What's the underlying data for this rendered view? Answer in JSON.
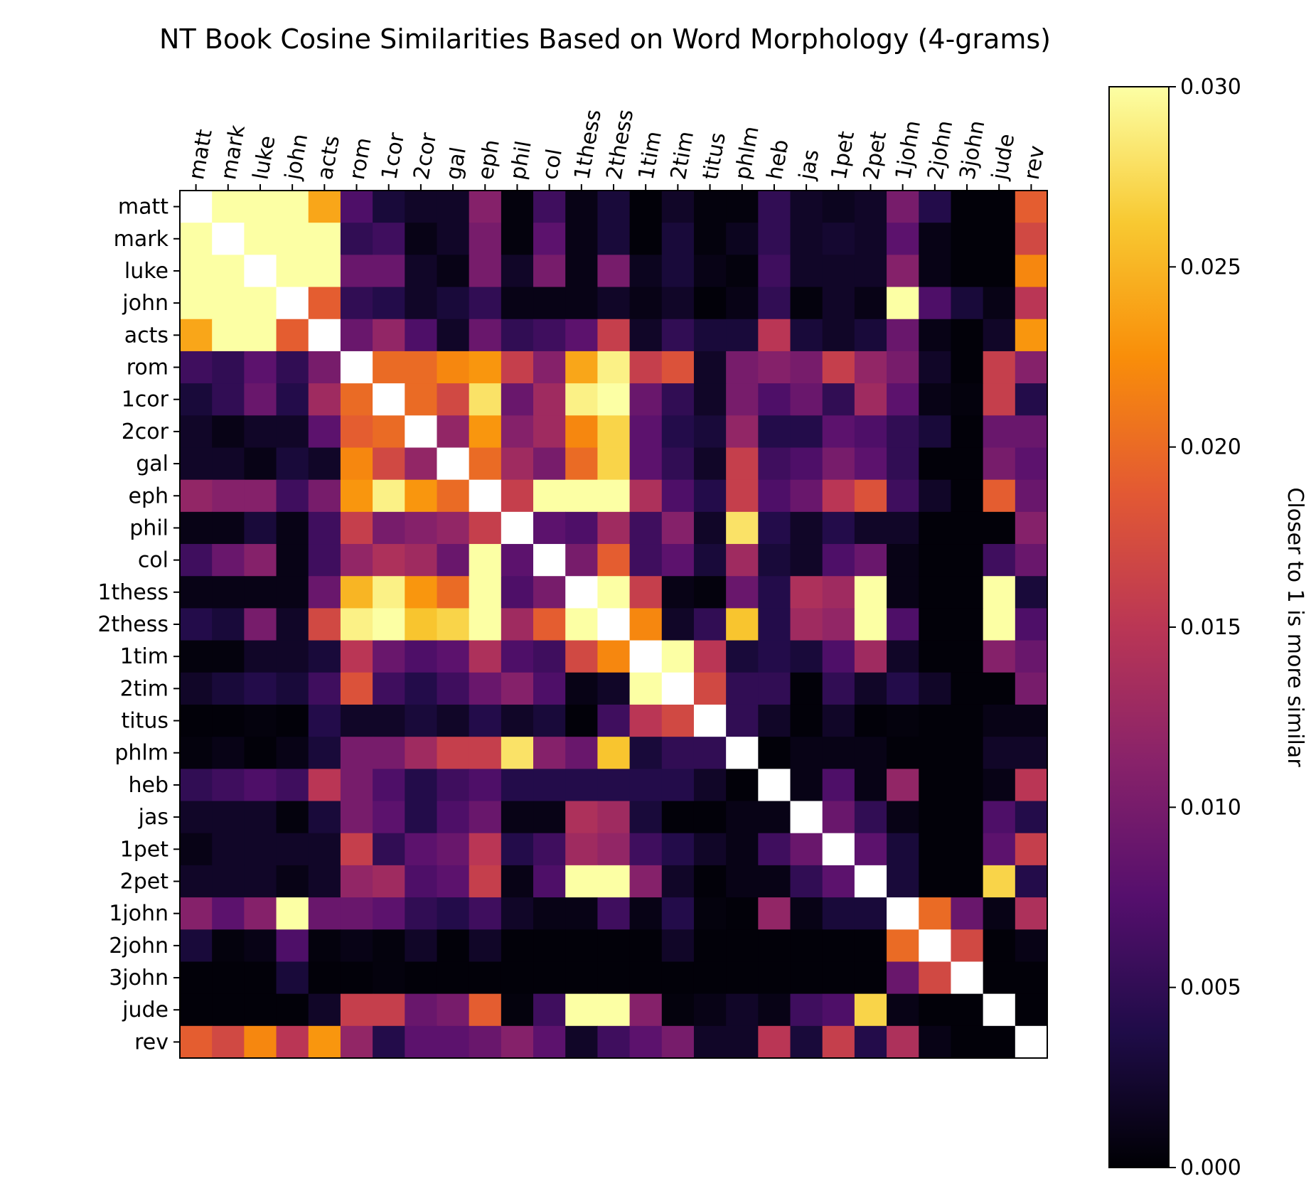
{
  "chart_data": {
    "type": "heatmap",
    "title": "NT Book Cosine Similarities Based on Word Morphology (4-grams)",
    "labels": [
      "matt",
      "mark",
      "luke",
      "john",
      "acts",
      "rom",
      "1cor",
      "2cor",
      "gal",
      "eph",
      "phil",
      "col",
      "1thess",
      "2thess",
      "1tim",
      "2tim",
      "titus",
      "phlm",
      "heb",
      "jas",
      "1pet",
      "2pet",
      "1john",
      "2john",
      "3john",
      "jude",
      "rev"
    ],
    "colormap": "inferno",
    "vmin": 0.0,
    "vmax": 0.03,
    "colorbar": {
      "label": "Closer to 1 is more similar",
      "ticks": [
        "0.000",
        "0.005",
        "0.010",
        "0.015",
        "0.020",
        "0.025",
        "0.030"
      ],
      "position": "right"
    },
    "diagonal_value": 1.0,
    "values": [
      [
        1.0,
        0.03,
        0.03,
        0.03,
        0.024,
        0.007,
        0.003,
        0.002,
        0.002,
        0.011,
        0.0005,
        0.006,
        0.001,
        0.003,
        0.0003,
        0.002,
        0.0005,
        0.0005,
        0.005,
        0.002,
        0.0015,
        0.002,
        0.01,
        0.004,
        0.0003,
        0.0003,
        0.019
      ],
      [
        0.03,
        1.0,
        0.03,
        0.03,
        0.03,
        0.005,
        0.006,
        0.001,
        0.002,
        0.01,
        0.0005,
        0.008,
        0.001,
        0.003,
        0.0003,
        0.003,
        0.0005,
        0.0015,
        0.005,
        0.002,
        0.0025,
        0.002,
        0.008,
        0.001,
        0.0003,
        0.0003,
        0.017
      ],
      [
        0.03,
        0.03,
        1.0,
        0.03,
        0.03,
        0.009,
        0.009,
        0.002,
        0.001,
        0.01,
        0.002,
        0.01,
        0.001,
        0.01,
        0.0015,
        0.003,
        0.001,
        0.0005,
        0.006,
        0.002,
        0.002,
        0.002,
        0.011,
        0.001,
        0.0003,
        0.0003,
        0.022
      ],
      [
        0.03,
        0.03,
        0.03,
        1.0,
        0.019,
        0.005,
        0.004,
        0.002,
        0.003,
        0.005,
        0.001,
        0.001,
        0.001,
        0.002,
        0.001,
        0.002,
        0.0003,
        0.001,
        0.005,
        0.0005,
        0.002,
        0.001,
        0.03,
        0.007,
        0.003,
        0.001,
        0.015
      ],
      [
        0.024,
        0.03,
        0.03,
        0.019,
        1.0,
        0.009,
        0.012,
        0.007,
        0.002,
        0.009,
        0.005,
        0.006,
        0.008,
        0.016,
        0.002,
        0.005,
        0.003,
        0.003,
        0.015,
        0.003,
        0.002,
        0.003,
        0.009,
        0.001,
        0.0003,
        0.002,
        0.023
      ],
      [
        0.006,
        0.005,
        0.008,
        0.005,
        0.01,
        1.0,
        0.02,
        0.02,
        0.022,
        0.023,
        0.016,
        0.011,
        0.024,
        0.029,
        0.016,
        0.018,
        0.002,
        0.01,
        0.011,
        0.01,
        0.016,
        0.012,
        0.01,
        0.002,
        0.0003,
        0.016,
        0.011
      ],
      [
        0.003,
        0.005,
        0.009,
        0.004,
        0.013,
        0.02,
        1.0,
        0.02,
        0.017,
        0.028,
        0.009,
        0.013,
        0.029,
        0.03,
        0.009,
        0.005,
        0.002,
        0.01,
        0.007,
        0.009,
        0.005,
        0.013,
        0.008,
        0.001,
        0.0005,
        0.016,
        0.004
      ],
      [
        0.002,
        0.001,
        0.002,
        0.002,
        0.008,
        0.019,
        0.02,
        1.0,
        0.012,
        0.023,
        0.011,
        0.013,
        0.022,
        0.027,
        0.008,
        0.004,
        0.003,
        0.012,
        0.004,
        0.004,
        0.008,
        0.007,
        0.005,
        0.003,
        0.0003,
        0.009,
        0.009
      ],
      [
        0.002,
        0.002,
        0.001,
        0.003,
        0.002,
        0.022,
        0.017,
        0.012,
        1.0,
        0.02,
        0.013,
        0.01,
        0.02,
        0.027,
        0.008,
        0.005,
        0.002,
        0.016,
        0.006,
        0.007,
        0.01,
        0.008,
        0.005,
        0.0003,
        0.0003,
        0.01,
        0.008
      ],
      [
        0.012,
        0.011,
        0.011,
        0.006,
        0.01,
        0.023,
        0.029,
        0.023,
        0.02,
        1.0,
        0.016,
        0.03,
        0.03,
        0.03,
        0.014,
        0.007,
        0.004,
        0.016,
        0.007,
        0.009,
        0.015,
        0.018,
        0.006,
        0.002,
        0.0003,
        0.019,
        0.009
      ],
      [
        0.001,
        0.001,
        0.003,
        0.001,
        0.006,
        0.016,
        0.01,
        0.011,
        0.012,
        0.016,
        1.0,
        0.008,
        0.007,
        0.013,
        0.006,
        0.011,
        0.002,
        0.028,
        0.004,
        0.002,
        0.004,
        0.002,
        0.002,
        0.0003,
        0.0003,
        0.0003,
        0.011
      ],
      [
        0.006,
        0.009,
        0.011,
        0.001,
        0.006,
        0.012,
        0.014,
        0.013,
        0.009,
        0.03,
        0.008,
        1.0,
        0.01,
        0.019,
        0.006,
        0.008,
        0.003,
        0.013,
        0.003,
        0.002,
        0.007,
        0.009,
        0.001,
        0.0003,
        0.0003,
        0.006,
        0.009
      ],
      [
        0.001,
        0.001,
        0.001,
        0.001,
        0.009,
        0.025,
        0.029,
        0.023,
        0.02,
        0.03,
        0.007,
        0.01,
        1.0,
        0.03,
        0.016,
        0.001,
        0.0005,
        0.009,
        0.004,
        0.014,
        0.013,
        0.03,
        0.001,
        0.0003,
        0.0003,
        0.03,
        0.003
      ],
      [
        0.004,
        0.003,
        0.01,
        0.002,
        0.017,
        0.029,
        0.03,
        0.026,
        0.027,
        0.03,
        0.013,
        0.019,
        0.03,
        1.0,
        0.022,
        0.002,
        0.005,
        0.026,
        0.004,
        0.013,
        0.012,
        0.03,
        0.007,
        0.0003,
        0.0003,
        0.03,
        0.007
      ],
      [
        0.0005,
        0.0005,
        0.002,
        0.002,
        0.003,
        0.015,
        0.009,
        0.007,
        0.008,
        0.014,
        0.007,
        0.006,
        0.017,
        0.022,
        1.0,
        0.03,
        0.015,
        0.003,
        0.004,
        0.003,
        0.007,
        0.013,
        0.002,
        0.0003,
        0.0003,
        0.011,
        0.009
      ],
      [
        0.002,
        0.003,
        0.004,
        0.003,
        0.006,
        0.018,
        0.006,
        0.004,
        0.006,
        0.009,
        0.011,
        0.007,
        0.001,
        0.002,
        0.03,
        1.0,
        0.017,
        0.005,
        0.005,
        0.0003,
        0.005,
        0.002,
        0.004,
        0.002,
        0.0003,
        0.0003,
        0.01
      ],
      [
        0.0003,
        0.0003,
        0.0005,
        0.0003,
        0.004,
        0.002,
        0.002,
        0.003,
        0.002,
        0.004,
        0.002,
        0.003,
        0.0003,
        0.006,
        0.015,
        0.017,
        1.0,
        0.005,
        0.002,
        0.0003,
        0.002,
        0.0003,
        0.0005,
        0.0003,
        0.0003,
        0.001,
        0.001
      ],
      [
        0.0005,
        0.001,
        0.0003,
        0.001,
        0.003,
        0.01,
        0.01,
        0.013,
        0.016,
        0.016,
        0.028,
        0.011,
        0.009,
        0.026,
        0.003,
        0.005,
        0.005,
        1.0,
        0.0003,
        0.001,
        0.001,
        0.001,
        0.0003,
        0.0003,
        0.0003,
        0.002,
        0.002
      ],
      [
        0.005,
        0.006,
        0.007,
        0.006,
        0.015,
        0.01,
        0.007,
        0.004,
        0.006,
        0.007,
        0.004,
        0.004,
        0.004,
        0.004,
        0.004,
        0.004,
        0.002,
        0.0003,
        1.0,
        0.001,
        0.007,
        0.001,
        0.012,
        0.0003,
        0.0003,
        0.001,
        0.015
      ],
      [
        0.002,
        0.002,
        0.002,
        0.0005,
        0.003,
        0.01,
        0.008,
        0.004,
        0.007,
        0.009,
        0.001,
        0.001,
        0.014,
        0.013,
        0.003,
        0.0003,
        0.0003,
        0.001,
        0.001,
        1.0,
        0.009,
        0.005,
        0.001,
        0.0003,
        0.0003,
        0.007,
        0.004
      ],
      [
        0.001,
        0.002,
        0.002,
        0.002,
        0.002,
        0.016,
        0.005,
        0.008,
        0.009,
        0.015,
        0.004,
        0.006,
        0.013,
        0.012,
        0.006,
        0.004,
        0.002,
        0.001,
        0.006,
        0.009,
        1.0,
        0.008,
        0.003,
        0.0003,
        0.0003,
        0.008,
        0.016
      ],
      [
        0.002,
        0.002,
        0.002,
        0.001,
        0.002,
        0.012,
        0.013,
        0.007,
        0.008,
        0.016,
        0.001,
        0.007,
        0.03,
        0.03,
        0.011,
        0.002,
        0.0003,
        0.001,
        0.001,
        0.005,
        0.008,
        1.0,
        0.003,
        0.0003,
        0.0003,
        0.027,
        0.004
      ],
      [
        0.011,
        0.008,
        0.011,
        0.03,
        0.009,
        0.009,
        0.008,
        0.005,
        0.004,
        0.006,
        0.002,
        0.001,
        0.001,
        0.006,
        0.001,
        0.004,
        0.0005,
        0.0003,
        0.012,
        0.001,
        0.003,
        0.003,
        1.0,
        0.02,
        0.009,
        0.001,
        0.014
      ],
      [
        0.003,
        0.0005,
        0.001,
        0.007,
        0.0005,
        0.001,
        0.0005,
        0.002,
        0.0003,
        0.002,
        0.0003,
        0.0003,
        0.0003,
        0.0003,
        0.0003,
        0.002,
        0.0003,
        0.0003,
        0.0003,
        0.0003,
        0.0003,
        0.0003,
        0.02,
        1.0,
        0.017,
        0.0003,
        0.001
      ],
      [
        0.0003,
        0.0003,
        0.0003,
        0.003,
        0.0003,
        0.0003,
        0.0005,
        0.0003,
        0.0003,
        0.0003,
        0.0003,
        0.0003,
        0.0003,
        0.0003,
        0.0003,
        0.0003,
        0.0003,
        0.0003,
        0.0003,
        0.0003,
        0.0003,
        0.0003,
        0.009,
        0.017,
        1.0,
        0.0003,
        0.0003
      ],
      [
        0.0003,
        0.0003,
        0.0003,
        0.0003,
        0.002,
        0.016,
        0.016,
        0.009,
        0.01,
        0.019,
        0.0005,
        0.006,
        0.03,
        0.03,
        0.011,
        0.0005,
        0.001,
        0.002,
        0.001,
        0.006,
        0.007,
        0.027,
        0.001,
        0.0003,
        0.0003,
        1.0,
        0.0003
      ],
      [
        0.019,
        0.017,
        0.022,
        0.015,
        0.023,
        0.012,
        0.004,
        0.008,
        0.008,
        0.009,
        0.011,
        0.008,
        0.002,
        0.006,
        0.008,
        0.01,
        0.002,
        0.002,
        0.015,
        0.003,
        0.016,
        0.004,
        0.014,
        0.001,
        0.0003,
        0.0003,
        1.0
      ]
    ]
  }
}
